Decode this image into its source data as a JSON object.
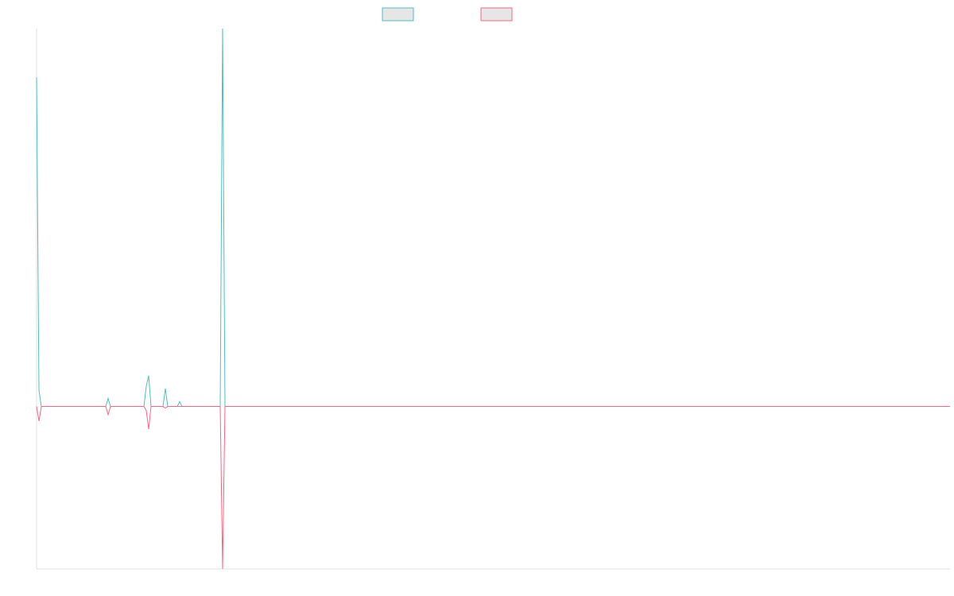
{
  "colors": {
    "series_1": "#4bc0c0",
    "series_2": "#ff6384",
    "legend_fill": "#e6e6e6",
    "axis": "#e0e0e0"
  },
  "chart_data": {
    "type": "line",
    "title": "",
    "xlabel": "",
    "ylabel": "",
    "grid": false,
    "legend": {
      "placement": "top-center",
      "entries": [
        "",
        ""
      ]
    },
    "x": [
      0,
      1,
      2,
      3,
      4,
      5,
      6,
      7,
      8,
      9,
      10,
      11,
      12,
      13,
      14,
      15,
      16,
      17,
      18,
      19,
      20,
      21,
      22,
      23,
      24,
      25,
      26,
      27,
      28,
      29,
      30,
      31,
      32,
      33,
      34,
      35,
      36,
      37,
      38,
      39,
      40,
      41,
      42,
      43,
      44,
      45,
      46,
      47,
      48,
      49,
      50,
      51,
      52,
      53,
      54,
      55,
      56,
      57,
      58,
      59,
      60,
      61,
      62,
      63,
      64,
      65,
      66,
      67,
      68,
      69,
      70,
      71,
      72,
      73,
      74,
      75,
      76,
      77,
      78,
      79,
      80,
      81,
      82,
      83,
      84,
      85,
      86,
      87,
      88,
      89,
      90,
      91,
      92,
      93,
      94,
      95,
      96,
      97,
      98,
      99,
      100,
      101,
      102,
      103,
      104,
      105,
      106,
      107,
      108,
      109,
      110,
      111,
      112,
      113,
      114,
      115,
      116,
      117,
      118,
      119,
      120,
      121,
      122,
      123,
      124,
      125,
      126,
      127,
      128,
      129,
      130,
      131,
      132,
      133,
      134,
      135,
      136,
      137,
      138,
      139,
      140,
      141,
      142,
      143,
      144,
      145,
      146,
      147,
      148,
      149,
      150,
      151,
      152,
      153,
      154,
      155,
      156,
      157,
      158,
      159,
      160,
      161,
      162,
      163,
      164,
      165,
      166,
      167,
      168,
      169,
      170,
      171,
      172,
      173,
      174,
      175,
      176,
      177,
      178,
      179,
      180,
      181,
      182,
      183,
      184,
      185,
      186,
      187,
      188,
      189,
      190,
      191,
      192,
      193,
      194,
      195,
      196,
      197,
      198,
      199,
      200,
      201,
      202,
      203,
      204,
      205,
      206,
      207,
      208,
      209,
      210,
      211,
      212,
      213,
      214,
      215,
      216,
      217,
      218,
      219,
      220,
      221,
      222,
      223,
      224,
      225,
      226,
      227,
      228,
      229,
      230,
      231,
      232,
      233,
      234,
      235,
      236,
      237,
      238,
      239,
      240,
      241,
      242,
      243,
      244,
      245,
      246,
      247,
      248,
      249,
      250,
      251,
      252,
      253,
      254,
      255,
      256,
      257,
      258,
      259,
      260,
      261,
      262,
      263,
      264,
      265,
      266,
      267,
      268,
      269,
      270,
      271,
      272,
      273,
      274,
      275,
      276,
      277,
      278,
      279,
      280,
      281,
      282,
      283,
      284,
      285,
      286,
      287,
      288,
      289,
      290,
      291,
      292,
      293,
      294,
      295,
      296,
      297,
      298,
      299,
      300,
      301,
      302,
      303,
      304,
      305,
      306,
      307,
      308,
      309,
      310,
      311,
      312,
      313,
      314,
      315,
      316,
      317,
      318,
      319,
      320,
      321,
      322,
      323,
      324,
      325,
      326,
      327,
      328,
      329,
      330,
      331,
      332,
      333,
      334,
      335,
      336,
      337,
      338,
      339,
      340,
      341,
      342,
      343,
      344,
      345,
      346,
      347,
      348,
      349,
      350,
      351,
      352,
      353,
      354,
      355,
      356,
      357,
      358,
      359,
      360,
      361,
      362,
      363,
      364,
      365,
      366,
      367,
      368,
      369,
      370,
      371,
      372,
      373,
      374,
      375,
      376,
      377,
      378,
      379,
      380,
      381,
      382,
      383
    ],
    "ylim": [
      -200,
      465
    ],
    "series": [
      {
        "color": "#4bc0c0",
        "points": [
          [
            0,
            405
          ],
          [
            1,
            20
          ],
          [
            2,
            0
          ],
          [
            29,
            0
          ],
          [
            30,
            10
          ],
          [
            31,
            0
          ],
          [
            45,
            0
          ],
          [
            46,
            25
          ],
          [
            47,
            38
          ],
          [
            48,
            0
          ],
          [
            53,
            0
          ],
          [
            54,
            22
          ],
          [
            55,
            0
          ],
          [
            59,
            0
          ],
          [
            60,
            6
          ],
          [
            61,
            0
          ],
          [
            77,
            0
          ],
          [
            78,
            465
          ],
          [
            79,
            0
          ],
          [
            383,
            0
          ]
        ]
      },
      {
        "color": "#ff6384",
        "points": [
          [
            0,
            0
          ],
          [
            1,
            -18
          ],
          [
            2,
            0
          ],
          [
            29,
            0
          ],
          [
            30,
            -10
          ],
          [
            31,
            0
          ],
          [
            45,
            0
          ],
          [
            46,
            -5
          ],
          [
            47,
            -28
          ],
          [
            48,
            0
          ],
          [
            53,
            0
          ],
          [
            54,
            -2
          ],
          [
            55,
            0
          ],
          [
            77,
            0
          ],
          [
            78,
            -200
          ],
          [
            79,
            0
          ],
          [
            383,
            0
          ]
        ]
      }
    ]
  }
}
